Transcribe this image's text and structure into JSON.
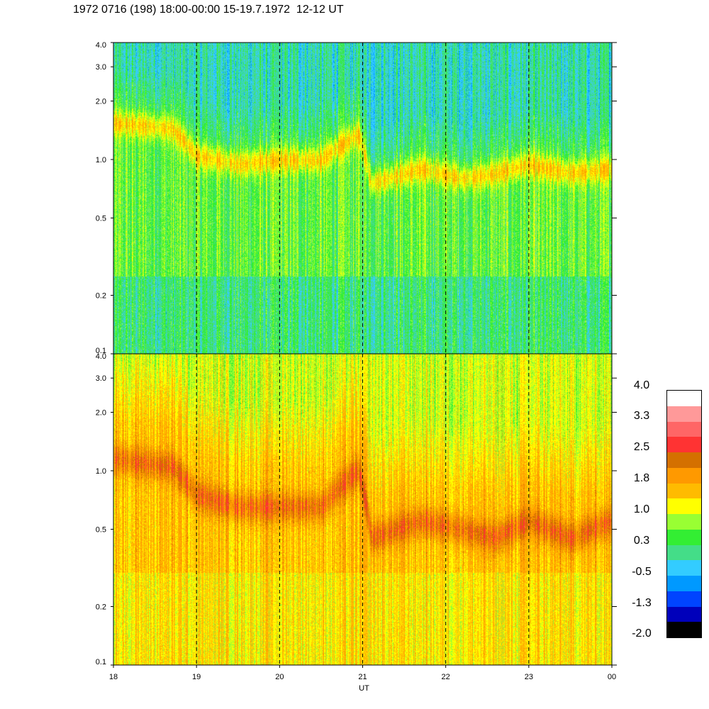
{
  "title": "1972 0716 (198) 18:00-00:00 15-19.7.1972  12-12 UT",
  "chart_data": [
    {
      "type": "heatmap",
      "panel": "top",
      "x_ticks": [
        "18",
        "19",
        "20",
        "21",
        "22",
        "23",
        "00"
      ],
      "y_ticks": [
        "0.1",
        "0.2",
        "0.5",
        "1.0",
        "2.0",
        "3.0",
        "4.0"
      ],
      "y_tick_values": [
        0.1,
        0.2,
        0.5,
        1.0,
        2.0,
        3.0,
        4.0
      ],
      "y_scale": "log",
      "ylim": [
        0.1,
        4.0
      ],
      "xlim": [
        18,
        24
      ],
      "background_level": 0.3,
      "band_trace": [
        {
          "x": 18.0,
          "y": 1.55
        },
        {
          "x": 18.7,
          "y": 1.45
        },
        {
          "x": 19.0,
          "y": 1.05
        },
        {
          "x": 19.5,
          "y": 0.95
        },
        {
          "x": 20.0,
          "y": 1.0
        },
        {
          "x": 20.5,
          "y": 1.0
        },
        {
          "x": 20.95,
          "y": 1.35
        },
        {
          "x": 21.1,
          "y": 0.75
        },
        {
          "x": 21.7,
          "y": 0.9
        },
        {
          "x": 22.2,
          "y": 0.8
        },
        {
          "x": 22.6,
          "y": 0.85
        },
        {
          "x": 23.0,
          "y": 0.95
        },
        {
          "x": 23.5,
          "y": 0.85
        },
        {
          "x": 24.0,
          "y": 0.9
        }
      ],
      "vertical_dashed_lines": [
        "19",
        "20",
        "21",
        "22",
        "23"
      ]
    },
    {
      "type": "heatmap",
      "panel": "bottom",
      "xlabel": "UT",
      "x_ticks": [
        "18",
        "19",
        "20",
        "21",
        "22",
        "23",
        "00"
      ],
      "y_ticks": [
        "0.1",
        "0.2",
        "0.5",
        "1.0",
        "2.0",
        "3.0",
        "4.0"
      ],
      "y_tick_values": [
        0.1,
        0.2,
        0.5,
        1.0,
        2.0,
        3.0,
        4.0
      ],
      "y_scale": "log",
      "ylim": [
        0.1,
        4.0
      ],
      "xlim": [
        18,
        24
      ],
      "background_level": 1.6,
      "band_trace": [
        {
          "x": 18.0,
          "y": 1.15
        },
        {
          "x": 18.7,
          "y": 1.05
        },
        {
          "x": 19.0,
          "y": 0.75
        },
        {
          "x": 19.5,
          "y": 0.65
        },
        {
          "x": 20.0,
          "y": 0.65
        },
        {
          "x": 20.5,
          "y": 0.65
        },
        {
          "x": 20.95,
          "y": 1.0
        },
        {
          "x": 21.1,
          "y": 0.45
        },
        {
          "x": 21.7,
          "y": 0.55
        },
        {
          "x": 22.2,
          "y": 0.5
        },
        {
          "x": 22.6,
          "y": 0.45
        },
        {
          "x": 23.0,
          "y": 0.55
        },
        {
          "x": 23.5,
          "y": 0.45
        },
        {
          "x": 24.0,
          "y": 0.55
        }
      ],
      "vertical_dashed_lines": [
        "19",
        "20",
        "21",
        "22",
        "23"
      ]
    }
  ],
  "colorbar": {
    "labels": [
      "4.0",
      "3.3",
      "2.5",
      "1.8",
      "1.0",
      "0.3",
      "-0.5",
      "-1.3",
      "-2.0"
    ],
    "colors": [
      "#ffffff",
      "#ff9999",
      "#ff6666",
      "#ff3333",
      "#d47000",
      "#ff9900",
      "#ffbb00",
      "#ffff00",
      "#99ff33",
      "#33ee33",
      "#44dd88",
      "#33ccff",
      "#0099ff",
      "#0044ff",
      "#0000bb",
      "#000000"
    ]
  }
}
